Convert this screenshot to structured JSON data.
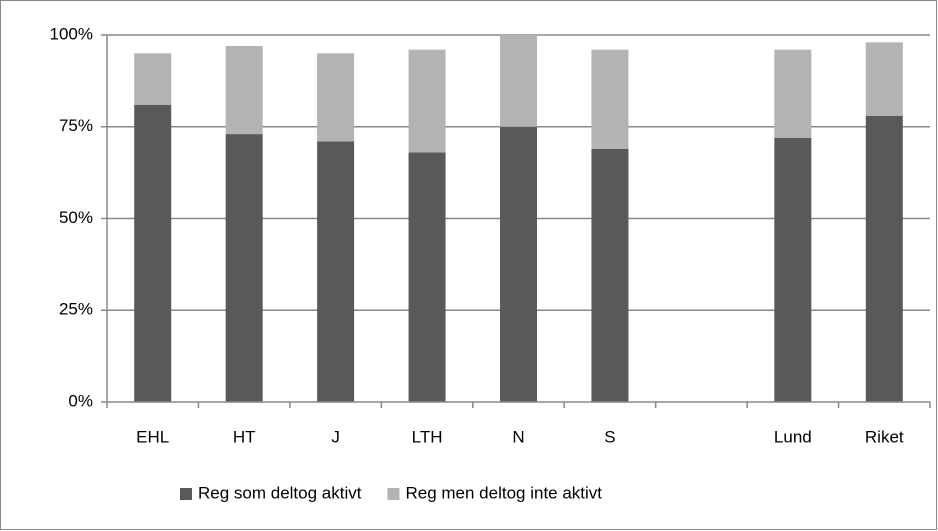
{
  "chart_data": {
    "type": "stacked_bar",
    "categories": [
      "EHL",
      "HT",
      "J",
      "LTH",
      "N",
      "S",
      null,
      "Lund",
      "Riket"
    ],
    "series": [
      {
        "name": "Reg som deltog aktivt",
        "color": "#595959",
        "values": [
          81,
          73,
          71,
          68,
          75,
          69,
          null,
          72,
          78
        ]
      },
      {
        "name": "Reg men deltog inte aktivt",
        "color": "#b3b3b3",
        "values": [
          14,
          24,
          24,
          28,
          25,
          27,
          null,
          24,
          20
        ]
      }
    ],
    "ylim": [
      0,
      100
    ],
    "yticks": [
      {
        "value": 0,
        "label": "0%"
      },
      {
        "value": 25,
        "label": "25%"
      },
      {
        "value": 50,
        "label": "50%"
      },
      {
        "value": 75,
        "label": "75%"
      },
      {
        "value": 100,
        "label": "100%"
      }
    ],
    "grid": true,
    "legend": "bottom"
  }
}
